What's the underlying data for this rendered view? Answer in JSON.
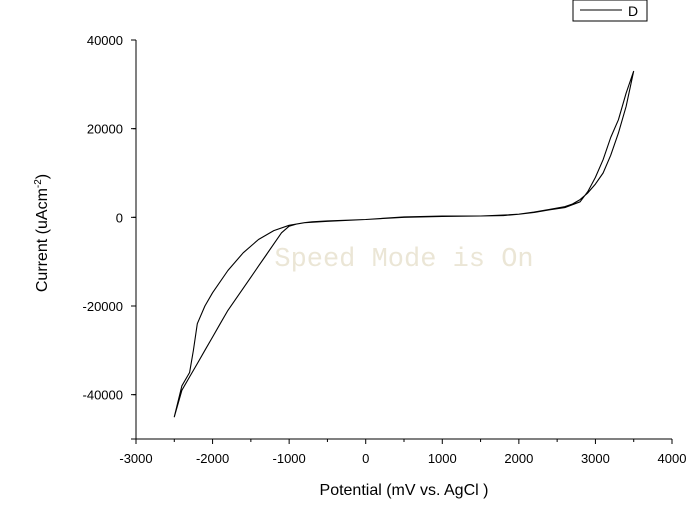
{
  "chart_data": {
    "type": "line",
    "xlabel": "Potential (mV vs. AgCl )",
    "ylabel_main": "Current (uAcm",
    "ylabel_sup": "-2",
    "ylabel_end": ")",
    "xlim": [
      -3000,
      4000
    ],
    "ylim": [
      -50000,
      40000
    ],
    "xticks": [
      -3000,
      -2000,
      -1000,
      0,
      1000,
      2000,
      3000,
      4000
    ],
    "xtick_labels": [
      "-3000",
      "-2000",
      "-1000",
      "0",
      "1000",
      "2000",
      "3000",
      "4000"
    ],
    "yticks": [
      40000,
      20000,
      0,
      -20000,
      -40000
    ],
    "ytick_labels": [
      "40000",
      "20000",
      "0",
      "-20000",
      "-40000"
    ],
    "grid": false,
    "legend_position": "top-right",
    "series": [
      {
        "name": "D",
        "color": "#000000",
        "x": [
          3500,
          3400,
          3300,
          3200,
          3100,
          3000,
          2900,
          2800,
          2700,
          2600,
          2400,
          2200,
          2000,
          1800,
          1500,
          1000,
          500,
          0,
          -500,
          -800,
          -1000,
          -1200,
          -1400,
          -1600,
          -1800,
          -2000,
          -2100,
          -2200,
          -2250,
          -2300,
          -2400,
          -2500,
          -2400,
          -2300,
          -2200,
          -2100,
          -2000,
          -1900,
          -1800,
          -1700,
          -1600,
          -1500,
          -1400,
          -1300,
          -1200,
          -1100,
          -1000,
          -900,
          -800,
          -700,
          -500,
          0,
          500,
          1000,
          1500,
          1800,
          2000,
          2200,
          2400,
          2600,
          2800,
          2900,
          3000,
          3100,
          3200,
          3300,
          3400,
          3500
        ],
        "y": [
          33000,
          25000,
          19000,
          14000,
          10000,
          7500,
          5500,
          4000,
          3000,
          2400,
          1800,
          1200,
          700,
          400,
          300,
          200,
          0,
          -500,
          -900,
          -1200,
          -1800,
          -3000,
          -5000,
          -8000,
          -12000,
          -17000,
          -20000,
          -24000,
          -30000,
          -35000,
          -38000,
          -45000,
          -39000,
          -36000,
          -33000,
          -30000,
          -27000,
          -24000,
          -21000,
          -18500,
          -16000,
          -13500,
          -11000,
          -8500,
          -6000,
          -3500,
          -2000,
          -1500,
          -1200,
          -1000,
          -800,
          -500,
          100,
          300,
          300,
          500,
          700,
          1100,
          1700,
          2200,
          3500,
          5800,
          9000,
          13000,
          18000,
          22000,
          28000,
          33000
        ]
      }
    ]
  },
  "watermark": "Speed Mode is On"
}
